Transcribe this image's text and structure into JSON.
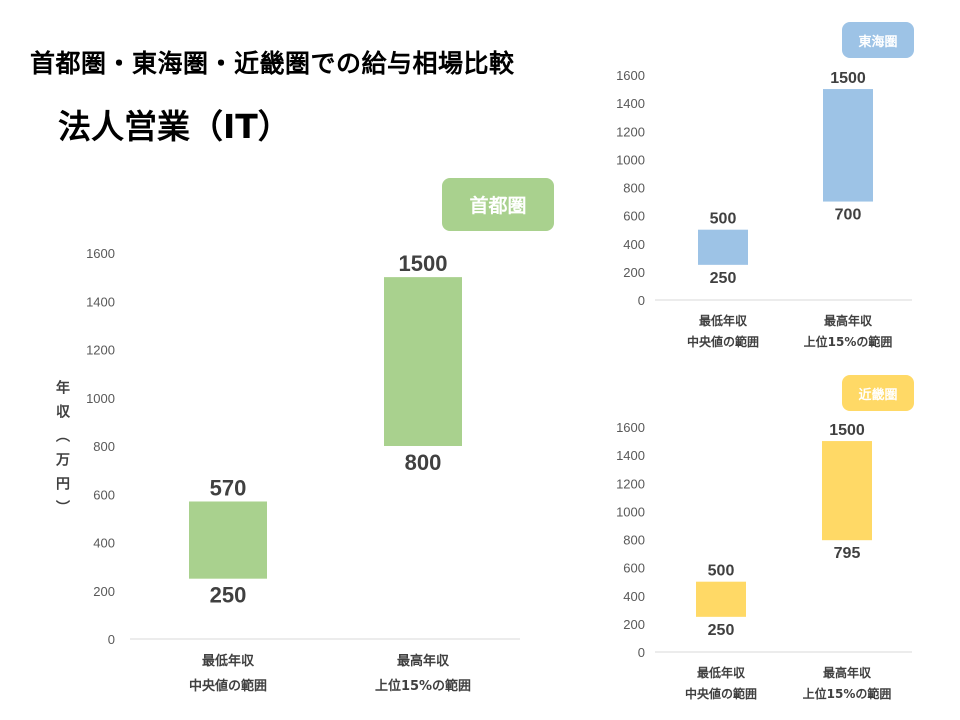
{
  "title": "首都圏・東海圏・近畿圏での給与相場比較",
  "subtitle": "法人営業（IT）",
  "chart_data": [
    {
      "type": "bar",
      "subtype": "floating-range",
      "region": "首都圏",
      "badge_color": "#a9d18e",
      "bar_color": "#a9d18e",
      "ylabel": "年収（万円）",
      "ylabel_chars": [
        "年",
        "収",
        "︵",
        "万",
        "円",
        "︶"
      ],
      "ylim": [
        0,
        1600
      ],
      "yticks": [
        "0",
        "200",
        "400",
        "600",
        "800",
        "1000",
        "1200",
        "1400",
        "1600"
      ],
      "categories": [
        [
          "最低年収",
          "中央値の範囲"
        ],
        [
          "最高年収",
          "上位15%の範囲"
        ]
      ],
      "ranges": [
        [
          250,
          570
        ],
        [
          800,
          1500
        ]
      ]
    },
    {
      "type": "bar",
      "subtype": "floating-range",
      "region": "東海圏",
      "badge_color": "#9dc3e6",
      "bar_color": "#9dc3e6",
      "ylim": [
        0,
        1600
      ],
      "yticks": [
        "0",
        "200",
        "400",
        "600",
        "800",
        "1000",
        "1200",
        "1400",
        "1600"
      ],
      "categories": [
        [
          "最低年収",
          "中央値の範囲"
        ],
        [
          "最高年収",
          "上位15%の範囲"
        ]
      ],
      "ranges": [
        [
          250,
          500
        ],
        [
          700,
          1500
        ]
      ]
    },
    {
      "type": "bar",
      "subtype": "floating-range",
      "region": "近畿圏",
      "badge_color": "#ffd966",
      "bar_color": "#ffd966",
      "ylim": [
        0,
        1600
      ],
      "yticks": [
        "0",
        "200",
        "400",
        "600",
        "800",
        "1000",
        "1200",
        "1400",
        "1600"
      ],
      "categories": [
        [
          "最低年収",
          "中央値の範囲"
        ],
        [
          "最高年収",
          "上位15%の範囲"
        ]
      ],
      "ranges": [
        [
          250,
          500
        ],
        [
          795,
          1500
        ]
      ]
    }
  ]
}
